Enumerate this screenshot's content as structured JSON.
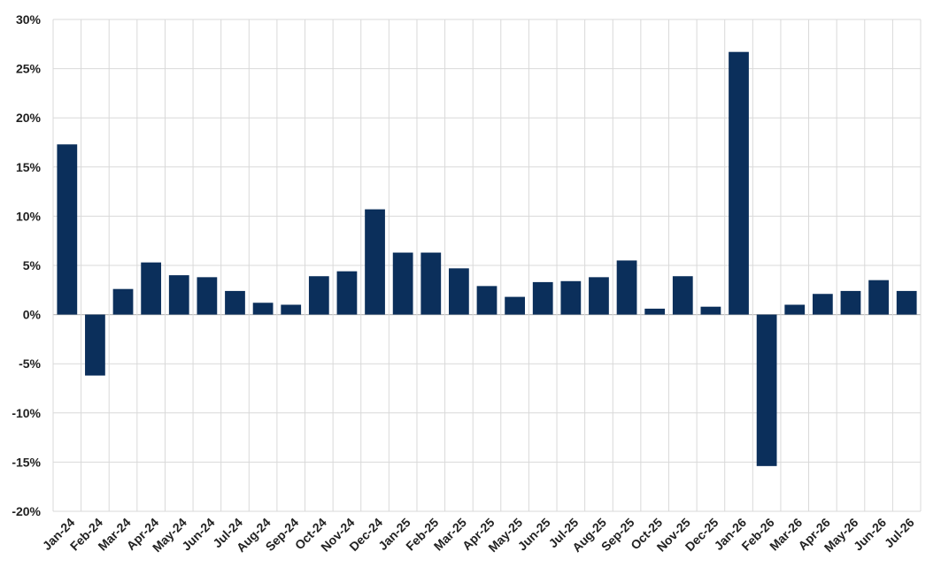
{
  "chart_data": {
    "type": "bar",
    "title": "",
    "xlabel": "",
    "ylabel": "",
    "categories": [
      "Jan-24",
      "Feb-24",
      "Mar-24",
      "Apr-24",
      "May-24",
      "Jun-24",
      "Jul-24",
      "Aug-24",
      "Sep-24",
      "Oct-24",
      "Nov-24",
      "Dec-24",
      "Jan-25",
      "Feb-25",
      "Mar-25",
      "Apr-25",
      "May-25",
      "Jun-25",
      "Jul-25",
      "Aug-25",
      "Sep-25",
      "Oct-25",
      "Nov-25",
      "Dec-25",
      "Jan-26",
      "Feb-26",
      "Mar-26",
      "Apr-26",
      "May-26",
      "Jun-26",
      "Jul-26"
    ],
    "values": [
      17.3,
      -6.2,
      2.6,
      5.3,
      4.0,
      3.8,
      2.4,
      1.2,
      1.0,
      3.9,
      4.4,
      10.7,
      6.3,
      6.3,
      4.7,
      2.9,
      1.8,
      3.3,
      3.4,
      3.8,
      5.5,
      0.6,
      3.9,
      0.8,
      26.7,
      -15.4,
      1.0,
      2.1,
      2.4,
      3.5,
      2.4
    ],
    "ylim": [
      -20,
      30
    ],
    "yticks": [
      30,
      25,
      20,
      15,
      10,
      5,
      0,
      -5,
      -10,
      -15,
      -20
    ],
    "ytick_labels": [
      "30%",
      "25%",
      "20%",
      "15%",
      "10%",
      "5%",
      "0%",
      "-5%",
      "-10%",
      "-15%",
      "-20%"
    ],
    "grid": true,
    "bar_color": "#0b2f5b",
    "grid_color": "#d9d9d9"
  }
}
